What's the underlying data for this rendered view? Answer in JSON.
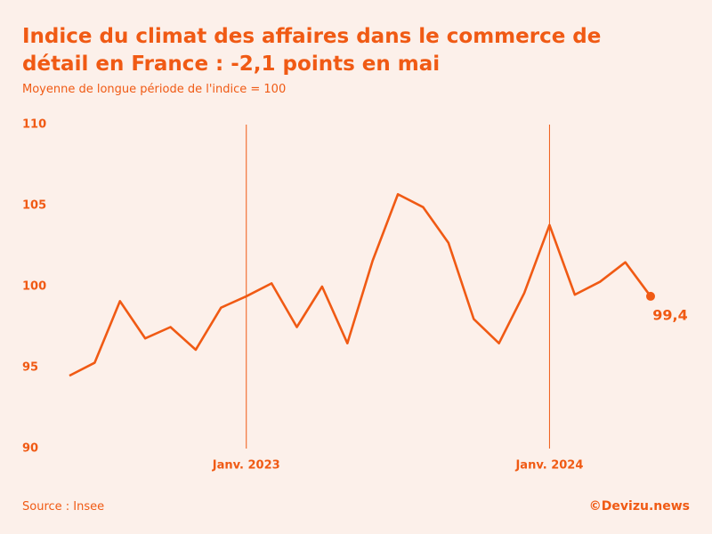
{
  "chart_data": {
    "type": "line",
    "title": "Indice du climat des affaires dans le commerce de détail en France : -2,1 points en mai",
    "subtitle": "Moyenne de longue période de l'indice = 100",
    "source": "Source : Insee",
    "credit": "©Devizu.news",
    "categories": [
      null,
      null,
      null,
      null,
      null,
      null,
      null,
      "Janv. 2023",
      null,
      null,
      null,
      null,
      null,
      null,
      null,
      null,
      null,
      null,
      null,
      "Janv. 2024",
      null,
      null,
      null,
      null
    ],
    "series": [
      {
        "color": "#f05a14",
        "values": [
          94.5,
          95.3,
          99.1,
          96.8,
          97.5,
          96.1,
          98.7,
          99.4,
          100.2,
          97.5,
          100.0,
          96.5,
          101.6,
          105.7,
          104.9,
          102.7,
          98.0,
          96.5,
          99.6,
          103.8,
          99.5,
          100.3,
          101.5,
          99.4
        ],
        "value_labels": [
          null,
          null,
          null,
          null,
          null,
          null,
          null,
          null,
          null,
          null,
          null,
          null,
          null,
          null,
          null,
          null,
          null,
          null,
          null,
          null,
          null,
          null,
          null,
          "99,4"
        ]
      }
    ],
    "ylim": [
      90,
      110
    ],
    "yticks": [
      90,
      95,
      100,
      105,
      110
    ],
    "grid": false
  }
}
